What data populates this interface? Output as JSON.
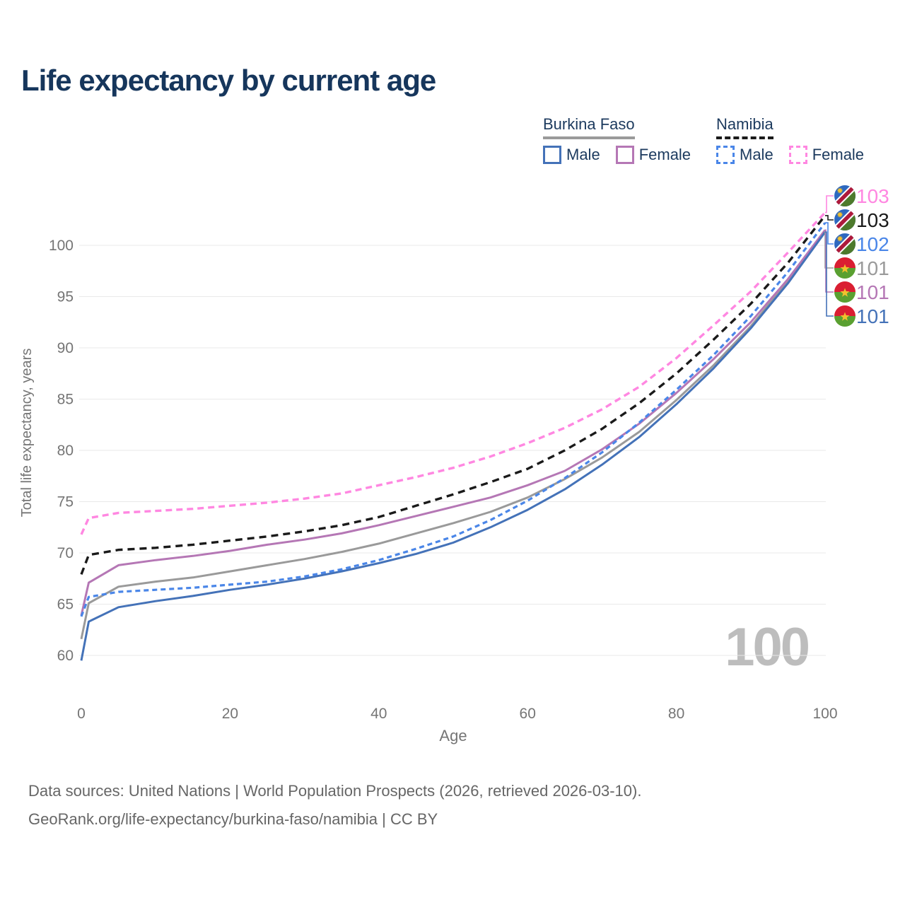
{
  "title": "Life expectancy by current age",
  "legend": {
    "groups": [
      {
        "name": "Burkina Faso",
        "line_style": "solid",
        "color": "#9a9a9a",
        "items": [
          {
            "label": "Male",
            "color": "#4472b8",
            "dashed": false
          },
          {
            "label": "Female",
            "color": "#b577b5",
            "dashed": false
          }
        ]
      },
      {
        "name": "Namibia",
        "line_style": "dashed",
        "color": "#1a1a1a",
        "items": [
          {
            "label": "Male",
            "color": "#4a86e8",
            "dashed": true
          },
          {
            "label": "Female",
            "color": "#ff87e1",
            "dashed": true
          }
        ]
      }
    ]
  },
  "watermark": "100",
  "footer": {
    "line1": "Data sources: United Nations | World Population Prospects (2026, retrieved 2026-03-10).",
    "line2": "GeoRank.org/life-expectancy/burkina-faso/namibia | CC BY"
  },
  "chart_data": {
    "type": "line",
    "title": "Life expectancy by current age",
    "xlabel": "Age",
    "ylabel": "Total life expectancy, years",
    "xlim": [
      0,
      100
    ],
    "ylim": [
      59,
      104
    ],
    "x_ticks": [
      0,
      20,
      40,
      60,
      80,
      100
    ],
    "y_ticks": [
      60,
      65,
      70,
      75,
      80,
      85,
      90,
      95,
      100
    ],
    "grid": "horizontal",
    "legend_position": "top-right",
    "axis_color": "#757575",
    "grid_color": "#e9e9e9",
    "ages": [
      0,
      1,
      5,
      10,
      15,
      20,
      25,
      30,
      35,
      40,
      45,
      50,
      55,
      60,
      65,
      70,
      75,
      80,
      85,
      90,
      95,
      100
    ],
    "series": [
      {
        "key": "bf_total",
        "name": "Burkina Faso",
        "sex": "Both",
        "color": "#9a9a9a",
        "dash": "",
        "width": 3,
        "values": [
          61.6,
          65.1,
          66.7,
          67.2,
          67.6,
          68.2,
          68.8,
          69.4,
          70.1,
          70.9,
          71.9,
          72.9,
          74.0,
          75.4,
          77.2,
          79.3,
          81.8,
          84.9,
          88.3,
          92.1,
          96.5,
          101.4
        ]
      },
      {
        "key": "bf_female",
        "name": "Burkina Faso — Female",
        "sex": "Female",
        "color": "#b577b5",
        "dash": "",
        "width": 3,
        "values": [
          63.9,
          67.1,
          68.8,
          69.3,
          69.7,
          70.2,
          70.8,
          71.3,
          71.9,
          72.7,
          73.6,
          74.5,
          75.4,
          76.6,
          78.0,
          80.1,
          82.6,
          85.6,
          88.9,
          92.5,
          96.7,
          101.5
        ]
      },
      {
        "key": "bf_male",
        "name": "Burkina Faso — Male",
        "sex": "Male",
        "color": "#4472b8",
        "dash": "",
        "width": 3,
        "values": [
          59.5,
          63.3,
          64.7,
          65.3,
          65.8,
          66.4,
          66.9,
          67.5,
          68.2,
          69.0,
          69.9,
          71.0,
          72.5,
          74.2,
          76.2,
          78.6,
          81.3,
          84.5,
          88.0,
          91.9,
          96.3,
          101.3
        ]
      },
      {
        "key": "na_total",
        "name": "Namibia",
        "sex": "Both",
        "color": "#1a1a1a",
        "dash": "10 7",
        "width": 3.4,
        "values": [
          67.9,
          69.8,
          70.3,
          70.5,
          70.8,
          71.2,
          71.6,
          72.1,
          72.7,
          73.5,
          74.6,
          75.7,
          76.9,
          78.2,
          80.0,
          82.1,
          84.6,
          87.5,
          90.8,
          94.3,
          98.3,
          102.9
        ]
      },
      {
        "key": "na_male",
        "name": "Namibia — Male",
        "sex": "Male",
        "color": "#4a86e8",
        "dash": "7 5",
        "width": 3.2,
        "values": [
          63.8,
          65.7,
          66.2,
          66.4,
          66.6,
          66.9,
          67.2,
          67.7,
          68.4,
          69.3,
          70.4,
          71.6,
          73.2,
          75.1,
          77.3,
          79.8,
          82.7,
          85.9,
          89.3,
          93.1,
          97.4,
          102.2
        ]
      },
      {
        "key": "na_female",
        "name": "Namibia — Female",
        "sex": "Female",
        "color": "#ff87e1",
        "dash": "9 6",
        "width": 3.4,
        "values": [
          71.8,
          73.4,
          73.9,
          74.1,
          74.3,
          74.6,
          74.9,
          75.3,
          75.8,
          76.6,
          77.4,
          78.3,
          79.4,
          80.7,
          82.2,
          84.0,
          86.2,
          89.0,
          92.2,
          95.5,
          99.3,
          103.2
        ]
      }
    ],
    "end_labels": [
      {
        "value": "103",
        "series": "na_female",
        "flag": "namibia",
        "elbow_x": 1169
      },
      {
        "value": "103",
        "series": "na_total",
        "flag": "namibia",
        "elbow_x": 1171
      },
      {
        "value": "102",
        "series": "na_male",
        "flag": "namibia",
        "elbow_x": 1171
      },
      {
        "value": "101",
        "series": "bf_total",
        "flag": "burkina-faso",
        "elbow_x": 1167
      },
      {
        "value": "101",
        "series": "bf_female",
        "flag": "burkina-faso",
        "elbow_x": 1168
      },
      {
        "value": "101",
        "series": "bf_male",
        "flag": "burkina-faso",
        "elbow_x": 1169
      }
    ],
    "flag_colors": {
      "namibia": {
        "blue": "#2d68c0",
        "red": "#ad1a3c",
        "white": "#ffffff",
        "green": "#4d7a2c",
        "sun": "#f2c12e"
      },
      "burkina_faso": {
        "red": "#da1e32",
        "green": "#5aa031",
        "star": "#f2c12e"
      }
    }
  }
}
